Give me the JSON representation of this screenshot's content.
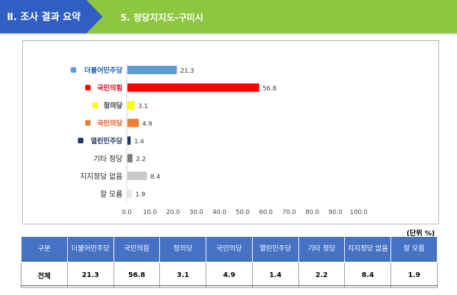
{
  "header": {
    "section": "Ⅱ. 조사 결과 요약",
    "title": "5. 정당지지도-구미시"
  },
  "colors": {
    "header_blue": "#2f5fc4",
    "header_green": "#8dc63f",
    "table_header": "#4472c4"
  },
  "chart_data": {
    "type": "bar",
    "orientation": "horizontal",
    "categories": [
      "더불어민주당",
      "국민의힘",
      "정의당",
      "국민의당",
      "열린민주당",
      "기타 정당",
      "지지정당 없음",
      "잘 모름"
    ],
    "category_label_styles": [
      "logo",
      "logo",
      "logo",
      "logo",
      "logo",
      "text",
      "text",
      "text"
    ],
    "values": [
      21.3,
      56.8,
      3.1,
      4.9,
      1.4,
      2.2,
      8.4,
      1.9
    ],
    "bar_colors": [
      "#5b9bd5",
      "#ff0000",
      "#ffff00",
      "#ed7d31",
      "#1f3864",
      "#7f7f7f",
      "#c9c9c9",
      "#e7e6e6"
    ],
    "xlim": [
      0,
      100
    ],
    "x_ticks": [
      "0.0",
      "10.0",
      "20.0",
      "30.0",
      "40.0",
      "50.0",
      "60.0",
      "70.0",
      "80.0",
      "90.0",
      "100.0"
    ],
    "grid": false,
    "legend": "none"
  },
  "table": {
    "unit_label": "(단위 %)",
    "headers": [
      "구분",
      "더불어민주당",
      "국민의힘",
      "정의당",
      "국민의당",
      "열린민주당",
      "기타 정당",
      "지지정당 없음",
      "잘 모름"
    ],
    "rows": [
      [
        "전체",
        "21.3",
        "56.8",
        "3.1",
        "4.9",
        "1.4",
        "2.2",
        "8.4",
        "1.9"
      ]
    ]
  }
}
